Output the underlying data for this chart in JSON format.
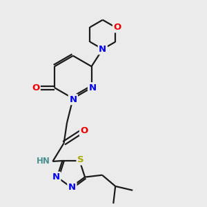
{
  "bg_color": "#ebebeb",
  "bond_color": "#1a1a1a",
  "atom_colors": {
    "N": "#0000ee",
    "O": "#ee0000",
    "S": "#aaaa00",
    "C": "#1a1a1a",
    "H": "#4a9090"
  },
  "font_size": 9.5,
  "lw": 1.6
}
